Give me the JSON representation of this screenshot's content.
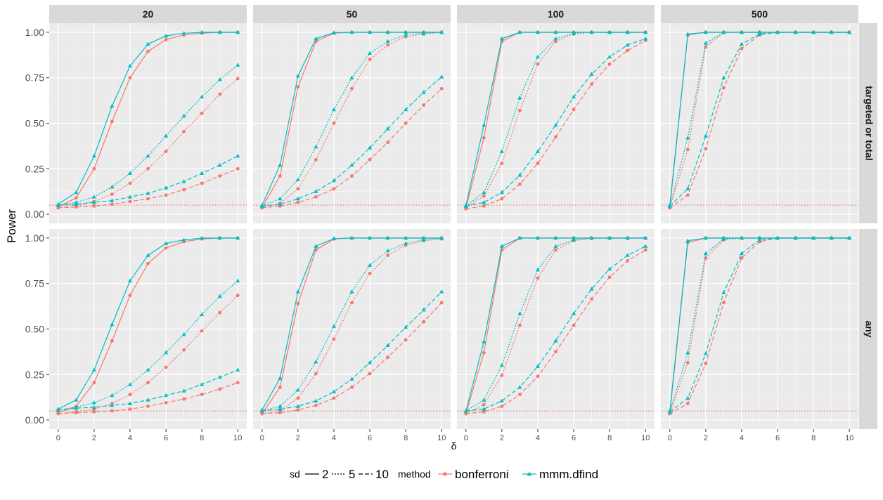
{
  "chart_data": {
    "type": "line",
    "xlabel": "δ",
    "ylabel": "Power",
    "xlim": [
      -0.5,
      10.5
    ],
    "ylim": [
      -0.05,
      1.05
    ],
    "x_ticks": [
      "0",
      "2",
      "4",
      "6",
      "8",
      "10"
    ],
    "y_ticks": [
      "0.00",
      "0.25",
      "0.50",
      "0.75",
      "1.00"
    ],
    "x": [
      0,
      1,
      2,
      3,
      4,
      5,
      6,
      7,
      8,
      9,
      10
    ],
    "reference_line": 0.05,
    "column_facets": [
      "20",
      "50",
      "100",
      "500"
    ],
    "row_facets": [
      "targeted or total",
      "any"
    ],
    "legend": {
      "position": "bottom",
      "sd_title": "sd",
      "sd_levels": [
        "2",
        "5",
        "10"
      ],
      "method_title": "method",
      "method_levels": [
        "bonferroni",
        "mmm.dfind"
      ]
    },
    "colors": {
      "bonferroni": "#F8766D",
      "mmm.dfind": "#00BFC4",
      "reference": "#F8766D"
    },
    "panels": [
      {
        "row": 0,
        "col": 0,
        "series": [
          {
            "method": "bonferroni",
            "sd": "2",
            "values": [
              0.04,
              0.09,
              0.25,
              0.51,
              0.75,
              0.895,
              0.96,
              0.985,
              0.995,
              1.0,
              1.0
            ]
          },
          {
            "method": "bonferroni",
            "sd": "5",
            "values": [
              0.035,
              0.05,
              0.07,
              0.11,
              0.17,
              0.25,
              0.345,
              0.455,
              0.555,
              0.66,
              0.745
            ]
          },
          {
            "method": "bonferroni",
            "sd": "10",
            "values": [
              0.035,
              0.04,
              0.045,
              0.055,
              0.07,
              0.085,
              0.105,
              0.135,
              0.17,
              0.21,
              0.25
            ]
          },
          {
            "method": "mmm.dfind",
            "sd": "2",
            "values": [
              0.055,
              0.12,
              0.32,
              0.595,
              0.815,
              0.935,
              0.98,
              0.995,
              1.0,
              1.0,
              1.0
            ]
          },
          {
            "method": "mmm.dfind",
            "sd": "5",
            "values": [
              0.05,
              0.065,
              0.095,
              0.15,
              0.225,
              0.32,
              0.43,
              0.54,
              0.645,
              0.74,
              0.82
            ]
          },
          {
            "method": "mmm.dfind",
            "sd": "10",
            "values": [
              0.05,
              0.055,
              0.065,
              0.075,
              0.095,
              0.115,
              0.145,
              0.18,
              0.225,
              0.27,
              0.32
            ]
          }
        ]
      },
      {
        "row": 0,
        "col": 1,
        "series": [
          {
            "method": "bonferroni",
            "sd": "2",
            "values": [
              0.035,
              0.21,
              0.7,
              0.95,
              0.995,
              1.0,
              1.0,
              1.0,
              1.0,
              1.0,
              1.0
            ]
          },
          {
            "method": "bonferroni",
            "sd": "5",
            "values": [
              0.035,
              0.06,
              0.14,
              0.3,
              0.5,
              0.69,
              0.85,
              0.93,
              0.975,
              0.99,
              1.0
            ]
          },
          {
            "method": "bonferroni",
            "sd": "10",
            "values": [
              0.035,
              0.045,
              0.065,
              0.095,
              0.14,
              0.21,
              0.3,
              0.395,
              0.5,
              0.6,
              0.69
            ]
          },
          {
            "method": "mmm.dfind",
            "sd": "2",
            "values": [
              0.05,
              0.27,
              0.76,
              0.965,
              0.998,
              1.0,
              1.0,
              1.0,
              1.0,
              1.0,
              1.0
            ]
          },
          {
            "method": "mmm.dfind",
            "sd": "5",
            "values": [
              0.045,
              0.085,
              0.19,
              0.37,
              0.575,
              0.75,
              0.885,
              0.95,
              0.985,
              0.995,
              1.0
            ]
          },
          {
            "method": "mmm.dfind",
            "sd": "10",
            "values": [
              0.045,
              0.055,
              0.085,
              0.125,
              0.185,
              0.27,
              0.365,
              0.47,
              0.575,
              0.67,
              0.755
            ]
          }
        ]
      },
      {
        "row": 0,
        "col": 2,
        "series": [
          {
            "method": "bonferroni",
            "sd": "2",
            "values": [
              0.035,
              0.42,
              0.95,
              1.0,
              1.0,
              1.0,
              1.0,
              1.0,
              1.0,
              1.0,
              1.0
            ]
          },
          {
            "method": "bonferroni",
            "sd": "5",
            "values": [
              0.035,
              0.1,
              0.28,
              0.57,
              0.825,
              0.95,
              0.99,
              1.0,
              1.0,
              1.0,
              1.0
            ]
          },
          {
            "method": "bonferroni",
            "sd": "10",
            "values": [
              0.03,
              0.045,
              0.085,
              0.165,
              0.28,
              0.425,
              0.575,
              0.715,
              0.825,
              0.9,
              0.955
            ]
          },
          {
            "method": "mmm.dfind",
            "sd": "2",
            "values": [
              0.05,
              0.49,
              0.965,
              1.0,
              1.0,
              1.0,
              1.0,
              1.0,
              1.0,
              1.0,
              1.0
            ]
          },
          {
            "method": "mmm.dfind",
            "sd": "5",
            "values": [
              0.045,
              0.12,
              0.345,
              0.64,
              0.865,
              0.965,
              0.995,
              1.0,
              1.0,
              1.0,
              1.0
            ]
          },
          {
            "method": "mmm.dfind",
            "sd": "10",
            "values": [
              0.045,
              0.065,
              0.12,
              0.215,
              0.345,
              0.49,
              0.645,
              0.77,
              0.865,
              0.93,
              0.965
            ]
          }
        ]
      },
      {
        "row": 0,
        "col": 3,
        "series": [
          {
            "method": "bonferroni",
            "sd": "2",
            "values": [
              0.035,
              0.985,
              1.0,
              1.0,
              1.0,
              1.0,
              1.0,
              1.0,
              1.0,
              1.0,
              1.0
            ]
          },
          {
            "method": "bonferroni",
            "sd": "5",
            "values": [
              0.035,
              0.355,
              0.92,
              1.0,
              1.0,
              1.0,
              1.0,
              1.0,
              1.0,
              1.0,
              1.0
            ]
          },
          {
            "method": "bonferroni",
            "sd": "10",
            "values": [
              0.035,
              0.105,
              0.36,
              0.695,
              0.91,
              0.985,
              1.0,
              1.0,
              1.0,
              1.0,
              1.0
            ]
          },
          {
            "method": "mmm.dfind",
            "sd": "2",
            "values": [
              0.05,
              0.99,
              1.0,
              1.0,
              1.0,
              1.0,
              1.0,
              1.0,
              1.0,
              1.0,
              1.0
            ]
          },
          {
            "method": "mmm.dfind",
            "sd": "5",
            "values": [
              0.045,
              0.42,
              0.94,
              1.0,
              1.0,
              1.0,
              1.0,
              1.0,
              1.0,
              1.0,
              1.0
            ]
          },
          {
            "method": "mmm.dfind",
            "sd": "10",
            "values": [
              0.045,
              0.14,
              0.43,
              0.75,
              0.935,
              0.99,
              1.0,
              1.0,
              1.0,
              1.0,
              1.0
            ]
          }
        ]
      },
      {
        "row": 1,
        "col": 0,
        "series": [
          {
            "method": "bonferroni",
            "sd": "2",
            "values": [
              0.04,
              0.075,
              0.205,
              0.435,
              0.685,
              0.86,
              0.945,
              0.98,
              0.995,
              1.0,
              1.0
            ]
          },
          {
            "method": "bonferroni",
            "sd": "5",
            "values": [
              0.035,
              0.045,
              0.06,
              0.09,
              0.14,
              0.205,
              0.29,
              0.385,
              0.49,
              0.59,
              0.685
            ]
          },
          {
            "method": "bonferroni",
            "sd": "10",
            "values": [
              0.035,
              0.04,
              0.045,
              0.05,
              0.06,
              0.075,
              0.095,
              0.115,
              0.14,
              0.17,
              0.205
            ]
          },
          {
            "method": "mmm.dfind",
            "sd": "2",
            "values": [
              0.06,
              0.11,
              0.275,
              0.525,
              0.765,
              0.905,
              0.97,
              0.99,
              1.0,
              1.0,
              1.0
            ]
          },
          {
            "method": "mmm.dfind",
            "sd": "5",
            "values": [
              0.055,
              0.07,
              0.095,
              0.135,
              0.195,
              0.275,
              0.37,
              0.47,
              0.58,
              0.68,
              0.765
            ]
          },
          {
            "method": "mmm.dfind",
            "sd": "10",
            "values": [
              0.055,
              0.065,
              0.07,
              0.08,
              0.09,
              0.11,
              0.135,
              0.16,
              0.195,
              0.235,
              0.275
            ]
          }
        ]
      },
      {
        "row": 1,
        "col": 1,
        "series": [
          {
            "method": "bonferroni",
            "sd": "2",
            "values": [
              0.035,
              0.18,
              0.64,
              0.935,
              0.995,
              1.0,
              1.0,
              1.0,
              1.0,
              1.0,
              1.0
            ]
          },
          {
            "method": "bonferroni",
            "sd": "5",
            "values": [
              0.035,
              0.05,
              0.12,
              0.255,
              0.445,
              0.645,
              0.805,
              0.905,
              0.96,
              0.985,
              0.995
            ]
          },
          {
            "method": "bonferroni",
            "sd": "10",
            "values": [
              0.035,
              0.04,
              0.055,
              0.08,
              0.12,
              0.18,
              0.255,
              0.345,
              0.44,
              0.54,
              0.645
            ]
          },
          {
            "method": "mmm.dfind",
            "sd": "2",
            "values": [
              0.055,
              0.23,
              0.705,
              0.955,
              0.997,
              1.0,
              1.0,
              1.0,
              1.0,
              1.0,
              1.0
            ]
          },
          {
            "method": "mmm.dfind",
            "sd": "5",
            "values": [
              0.05,
              0.075,
              0.165,
              0.32,
              0.515,
              0.705,
              0.85,
              0.93,
              0.97,
              0.99,
              1.0
            ]
          },
          {
            "method": "mmm.dfind",
            "sd": "10",
            "values": [
              0.05,
              0.06,
              0.075,
              0.105,
              0.155,
              0.225,
              0.315,
              0.41,
              0.51,
              0.605,
              0.705
            ]
          }
        ]
      },
      {
        "row": 1,
        "col": 2,
        "series": [
          {
            "method": "bonferroni",
            "sd": "2",
            "values": [
              0.035,
              0.37,
              0.935,
              1.0,
              1.0,
              1.0,
              1.0,
              1.0,
              1.0,
              1.0,
              1.0
            ]
          },
          {
            "method": "bonferroni",
            "sd": "5",
            "values": [
              0.035,
              0.085,
              0.245,
              0.52,
              0.78,
              0.935,
              0.985,
              0.998,
              1.0,
              1.0,
              1.0
            ]
          },
          {
            "method": "bonferroni",
            "sd": "10",
            "values": [
              0.035,
              0.045,
              0.075,
              0.14,
              0.24,
              0.375,
              0.52,
              0.665,
              0.785,
              0.875,
              0.935
            ]
          },
          {
            "method": "mmm.dfind",
            "sd": "2",
            "values": [
              0.05,
              0.43,
              0.955,
              1.0,
              1.0,
              1.0,
              1.0,
              1.0,
              1.0,
              1.0,
              1.0
            ]
          },
          {
            "method": "mmm.dfind",
            "sd": "5",
            "values": [
              0.05,
              0.11,
              0.3,
              0.585,
              0.825,
              0.955,
              0.99,
              1.0,
              1.0,
              1.0,
              1.0
            ]
          },
          {
            "method": "mmm.dfind",
            "sd": "10",
            "values": [
              0.05,
              0.06,
              0.105,
              0.18,
              0.295,
              0.435,
              0.585,
              0.72,
              0.83,
              0.905,
              0.955
            ]
          }
        ]
      },
      {
        "row": 1,
        "col": 3,
        "series": [
          {
            "method": "bonferroni",
            "sd": "2",
            "values": [
              0.035,
              0.975,
              1.0,
              1.0,
              1.0,
              1.0,
              1.0,
              1.0,
              1.0,
              1.0,
              1.0
            ]
          },
          {
            "method": "bonferroni",
            "sd": "5",
            "values": [
              0.035,
              0.315,
              0.89,
              0.99,
              1.0,
              1.0,
              1.0,
              1.0,
              1.0,
              1.0,
              1.0
            ]
          },
          {
            "method": "bonferroni",
            "sd": "10",
            "values": [
              0.035,
              0.09,
              0.31,
              0.645,
              0.89,
              0.98,
              1.0,
              1.0,
              1.0,
              1.0,
              1.0
            ]
          },
          {
            "method": "mmm.dfind",
            "sd": "2",
            "values": [
              0.05,
              0.985,
              1.0,
              1.0,
              1.0,
              1.0,
              1.0,
              1.0,
              1.0,
              1.0,
              1.0
            ]
          },
          {
            "method": "mmm.dfind",
            "sd": "5",
            "values": [
              0.045,
              0.37,
              0.915,
              0.995,
              1.0,
              1.0,
              1.0,
              1.0,
              1.0,
              1.0,
              1.0
            ]
          },
          {
            "method": "mmm.dfind",
            "sd": "10",
            "values": [
              0.045,
              0.12,
              0.365,
              0.7,
              0.915,
              0.99,
              1.0,
              1.0,
              1.0,
              1.0,
              1.0
            ]
          }
        ]
      }
    ]
  }
}
